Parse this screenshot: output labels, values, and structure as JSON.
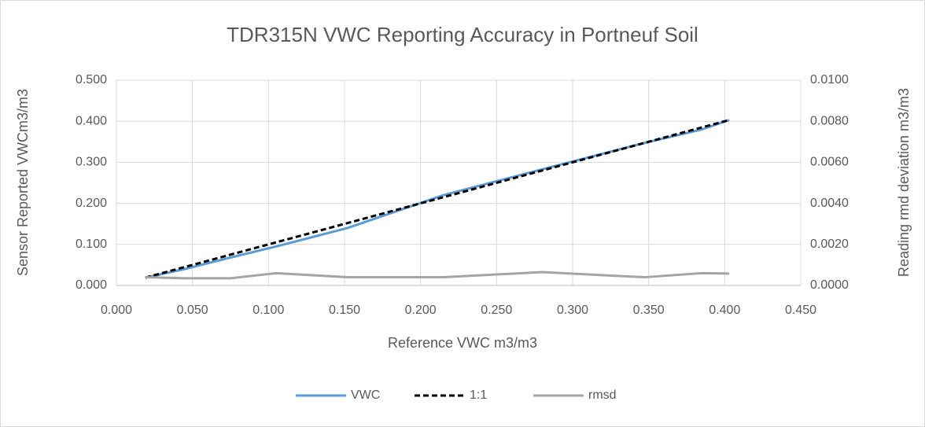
{
  "chart_data": {
    "type": "line",
    "title": "TDR315N VWC Reporting Accuracy in Portneuf Soil",
    "x_label": "Reference VWC m3/m3",
    "y_label": "Sensor Reported VWCm3/m3",
    "y2_label": "Reading rmd deviation m3/m3",
    "x": [
      0.019,
      0.045,
      0.075,
      0.105,
      0.152,
      0.215,
      0.28,
      0.347,
      0.385,
      0.403
    ],
    "series": [
      {
        "name": "VWC",
        "color": "#5b9bd5",
        "values": [
          0.019,
          0.04,
          0.068,
          0.095,
          0.14,
          0.22,
          0.283,
          0.347,
          0.38,
          0.403
        ]
      },
      {
        "name": "1:1",
        "color": "#000000",
        "dashed": true,
        "values": [
          0.019,
          0.045,
          0.075,
          0.105,
          0.152,
          0.215,
          0.28,
          0.347,
          0.385,
          0.403
        ]
      },
      {
        "name": "rmsd",
        "color": "#a5a5a5",
        "axis": "y2",
        "values": [
          0.0004,
          0.00035,
          0.00035,
          0.0006,
          0.0004,
          0.0004,
          0.00065,
          0.0004,
          0.0006,
          0.00058
        ]
      }
    ],
    "xlim": [
      0,
      0.45
    ],
    "xticks": [
      {
        "value": 0,
        "label": "0.000"
      },
      {
        "value": 0.05,
        "label": "0.050"
      },
      {
        "value": 0.1,
        "label": "0.100"
      },
      {
        "value": 0.15,
        "label": "0.150"
      },
      {
        "value": 0.2,
        "label": "0.200"
      },
      {
        "value": 0.25,
        "label": "0.250"
      },
      {
        "value": 0.3,
        "label": "0.300"
      },
      {
        "value": 0.35,
        "label": "0.350"
      },
      {
        "value": 0.4,
        "label": "0.400"
      },
      {
        "value": 0.45,
        "label": "0.450"
      }
    ],
    "ylim": [
      0,
      0.5
    ],
    "yticks": [
      {
        "value": 0,
        "label": "0.000"
      },
      {
        "value": 0.1,
        "label": "0.100"
      },
      {
        "value": 0.2,
        "label": "0.200"
      },
      {
        "value": 0.3,
        "label": "0.300"
      },
      {
        "value": 0.4,
        "label": "0.400"
      },
      {
        "value": 0.5,
        "label": "0.500"
      }
    ],
    "y2lim": [
      0,
      0.01
    ],
    "y2ticks": [
      {
        "value": 0,
        "label": "0.0000"
      },
      {
        "value": 0.002,
        "label": "0.0020"
      },
      {
        "value": 0.004,
        "label": "0.0040"
      },
      {
        "value": 0.006,
        "label": "0.0060"
      },
      {
        "value": 0.008,
        "label": "0.0080"
      },
      {
        "value": 0.01,
        "label": "0.0100"
      }
    ],
    "grid": true,
    "legend": "bottom"
  }
}
